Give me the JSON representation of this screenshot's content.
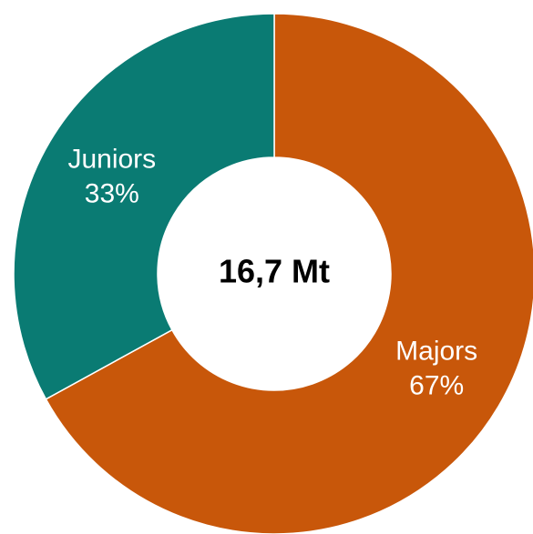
{
  "chart_data": {
    "type": "donut",
    "categories": [
      "Majors",
      "Juniors"
    ],
    "values": [
      67,
      33
    ],
    "value_labels": [
      "67%",
      "33%"
    ],
    "colors": [
      "#c8570a",
      "#0a7b73"
    ],
    "center_label": "16,7 Mt"
  }
}
